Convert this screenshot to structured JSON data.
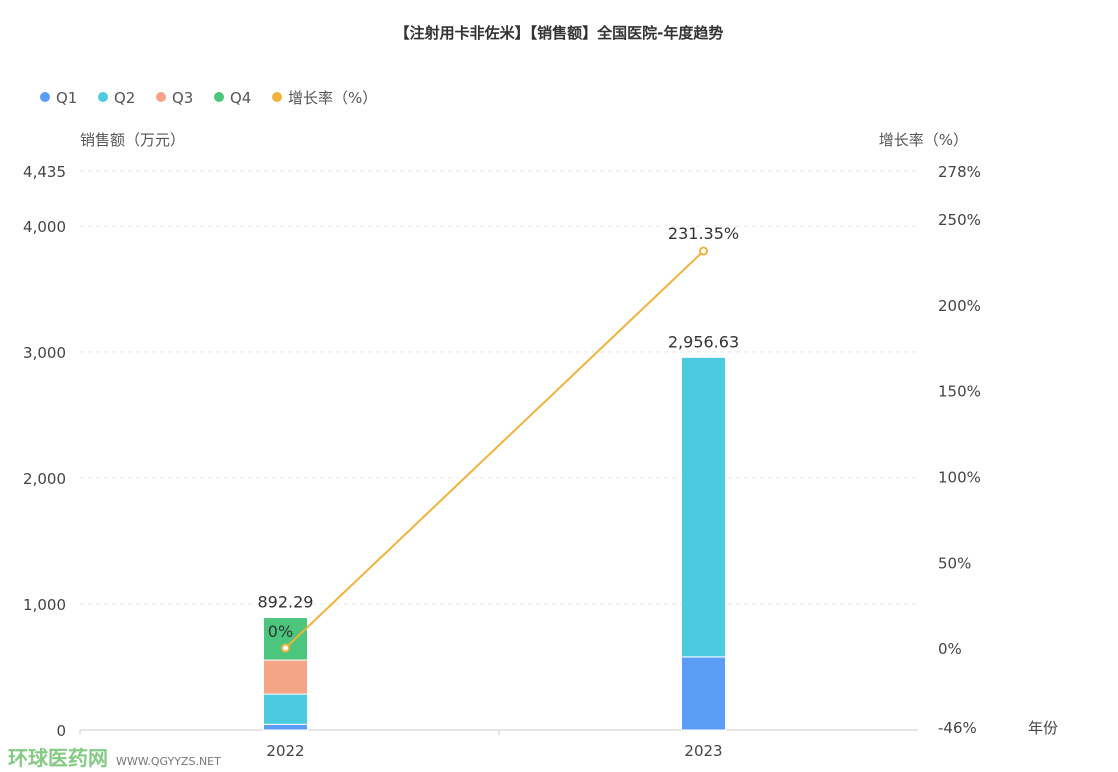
{
  "chart_data": {
    "type": "bar",
    "stacked": true,
    "title": "【注射用卡非佐米】【销售额】全国医院-年度趋势",
    "categories": [
      "2022",
      "2023"
    ],
    "xlabel": "年份",
    "ylabel": "销售额（万元）",
    "y2label": "增长率（%）",
    "ylim": [
      0,
      4435
    ],
    "y2lim": [
      -46,
      278
    ],
    "yticks": [
      "0",
      "1,000",
      "2,000",
      "3,000",
      "4,000",
      "4,435"
    ],
    "y2ticks": [
      "-46%",
      "0%",
      "50%",
      "100%",
      "150%",
      "200%",
      "250%",
      "278%"
    ],
    "legend_position": "top-left",
    "series": [
      {
        "name": "Q1",
        "color": "#5b9cf6",
        "values": [
          45,
          580
        ]
      },
      {
        "name": "Q2",
        "color": "#4ccbe0",
        "values": [
          240,
          2376.63
        ]
      },
      {
        "name": "Q3",
        "color": "#f4a487",
        "values": [
          270,
          0
        ]
      },
      {
        "name": "Q4",
        "color": "#4cc67c",
        "values": [
          337.29,
          0
        ]
      }
    ],
    "totals": [
      "892.29",
      "2,956.63"
    ],
    "line": {
      "name": "增长率（%）",
      "color": "#f0b23c",
      "values": [
        0,
        231.35
      ],
      "labels": [
        "0%",
        "231.35%"
      ]
    }
  },
  "watermark": {
    "name": "环球医药网",
    "url": "WWW.QGYYZS.NET"
  }
}
